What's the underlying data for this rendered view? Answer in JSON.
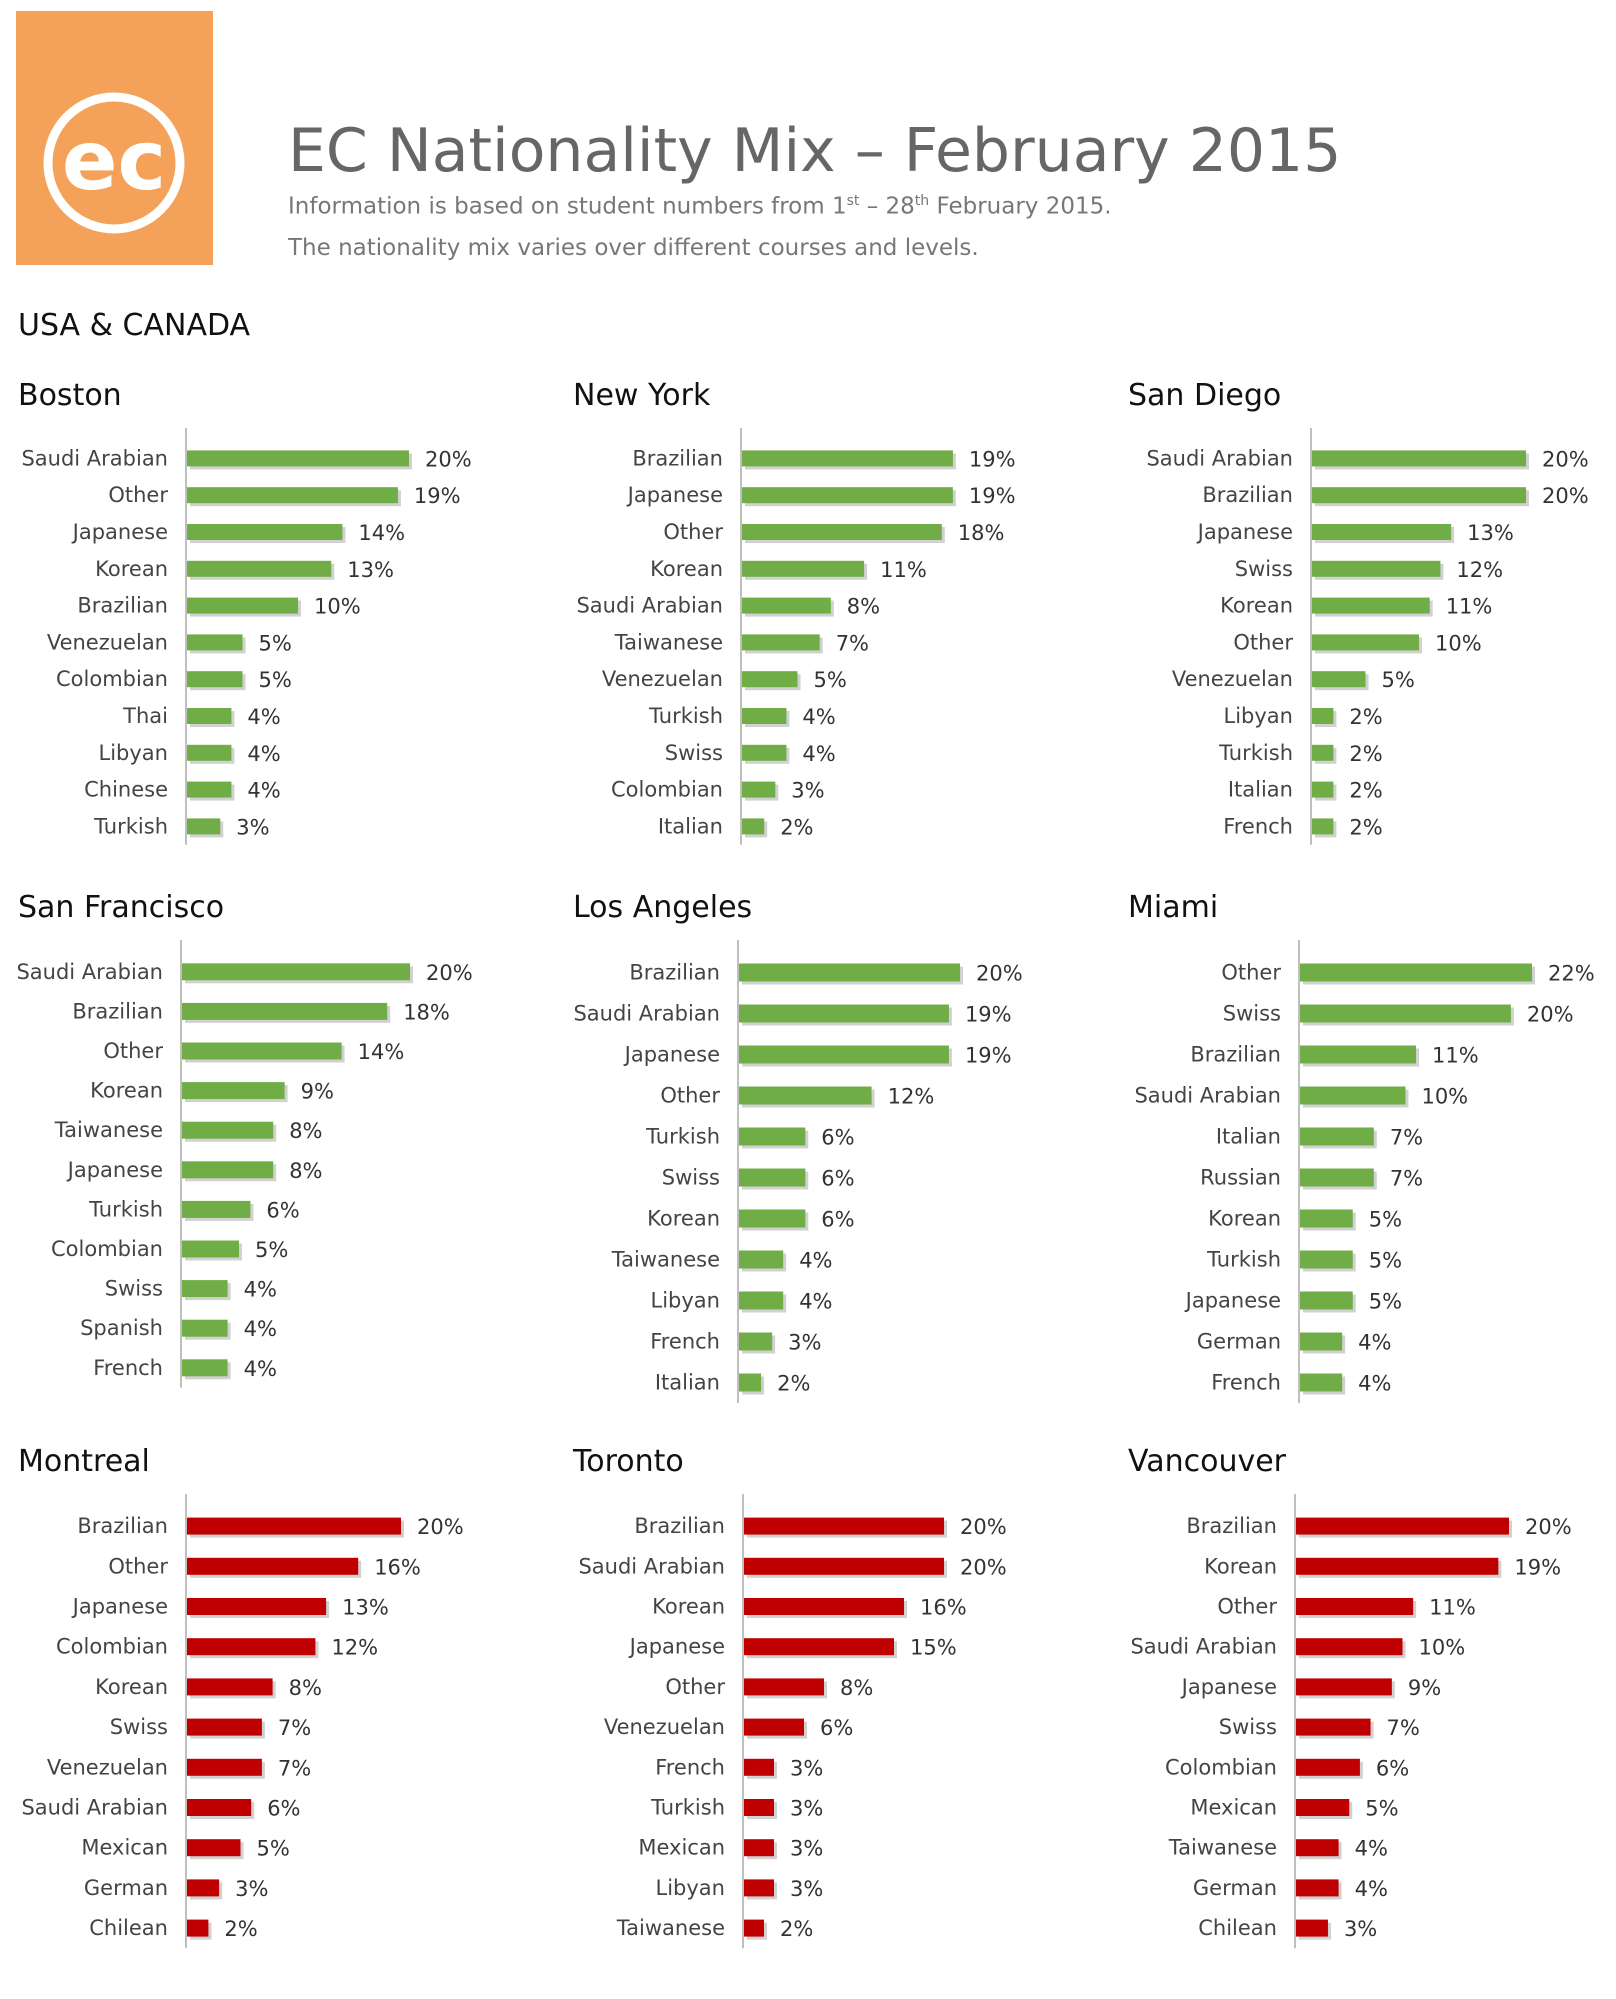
{
  "logo": {
    "text": "ec",
    "background": "#f4a259"
  },
  "header": {
    "title": "EC Nationality Mix – February 2015",
    "subtitle_pre": "Information is based on student numbers from 1",
    "subtitle_sup1": "st",
    "subtitle_mid": " – 28",
    "subtitle_sup2": "th",
    "subtitle_post": " February 2015.",
    "subtitle2": "The nationality mix varies over different courses and levels."
  },
  "region": "USA & CANADA",
  "chart_data": [
    {
      "type": "bar",
      "orientation": "horizontal",
      "title": "Boston",
      "color": "#70ad47",
      "xlim": [
        0,
        20
      ],
      "categories": [
        "Saudi Arabian",
        "Other",
        "Japanese",
        "Korean",
        "Brazilian",
        "Venezuelan",
        "Colombian",
        "Thai",
        "Libyan",
        "Chinese",
        "Turkish"
      ],
      "values": [
        20,
        19,
        14,
        13,
        10,
        5,
        5,
        4,
        4,
        4,
        3
      ],
      "labels": [
        "20%",
        "19%",
        "14%",
        "13%",
        "10%",
        "5%",
        "5%",
        "4%",
        "4%",
        "4%",
        "3%"
      ]
    },
    {
      "type": "bar",
      "orientation": "horizontal",
      "title": "New York",
      "color": "#70ad47",
      "xlim": [
        0,
        20
      ],
      "categories": [
        "Brazilian",
        "Japanese",
        "Other",
        "Korean",
        "Saudi Arabian",
        "Taiwanese",
        "Venezuelan",
        "Turkish",
        "Swiss",
        "Colombian",
        "Italian"
      ],
      "values": [
        19,
        19,
        18,
        11,
        8,
        7,
        5,
        4,
        4,
        3,
        2
      ],
      "labels": [
        "19%",
        "19%",
        "18%",
        "11%",
        "8%",
        "7%",
        "5%",
        "4%",
        "4%",
        "3%",
        "2%"
      ]
    },
    {
      "type": "bar",
      "orientation": "horizontal",
      "title": "San Diego",
      "color": "#70ad47",
      "xlim": [
        0,
        20
      ],
      "categories": [
        "Saudi Arabian",
        "Brazilian",
        "Japanese",
        "Swiss",
        "Korean",
        "Other",
        "Venezuelan",
        "Libyan",
        "Turkish",
        "Italian",
        "French"
      ],
      "values": [
        20,
        20,
        13,
        12,
        11,
        10,
        5,
        2,
        2,
        2,
        2
      ],
      "labels": [
        "20%",
        "20%",
        "13%",
        "12%",
        "11%",
        "10%",
        "5%",
        "2%",
        "2%",
        "2%",
        "2%"
      ]
    },
    {
      "type": "bar",
      "orientation": "horizontal",
      "title": "San Francisco",
      "color": "#70ad47",
      "xlim": [
        0,
        20
      ],
      "categories": [
        "Saudi Arabian",
        "Brazilian",
        "Other",
        "Korean",
        "Taiwanese",
        "Japanese",
        "Turkish",
        "Colombian",
        "Swiss",
        "Spanish",
        "French"
      ],
      "values": [
        20,
        18,
        14,
        9,
        8,
        8,
        6,
        5,
        4,
        4,
        4
      ],
      "labels": [
        "20%",
        "18%",
        "14%",
        "9%",
        "8%",
        "8%",
        "6%",
        "5%",
        "4%",
        "4%",
        "4%"
      ]
    },
    {
      "type": "bar",
      "orientation": "horizontal",
      "title": "Los Angeles",
      "color": "#70ad47",
      "xlim": [
        0,
        20
      ],
      "categories": [
        "Brazilian",
        "Saudi Arabian",
        "Japanese",
        "Other",
        "Turkish",
        "Swiss",
        "Korean",
        "Taiwanese",
        "Libyan",
        "French",
        "Italian"
      ],
      "values": [
        20,
        19,
        19,
        12,
        6,
        6,
        6,
        4,
        4,
        3,
        2
      ],
      "labels": [
        "20%",
        "19%",
        "19%",
        "12%",
        "6%",
        "6%",
        "6%",
        "4%",
        "4%",
        "3%",
        "2%"
      ]
    },
    {
      "type": "bar",
      "orientation": "horizontal",
      "title": "Miami",
      "color": "#70ad47",
      "xlim": [
        0,
        22
      ],
      "categories": [
        "Other",
        "Swiss",
        "Brazilian",
        "Saudi Arabian",
        "Italian",
        "Russian",
        "Korean",
        "Turkish",
        "Japanese",
        "German",
        "French"
      ],
      "values": [
        22,
        20,
        11,
        10,
        7,
        7,
        5,
        5,
        5,
        4,
        4
      ],
      "labels": [
        "22%",
        "20%",
        "11%",
        "10%",
        "7%",
        "7%",
        "5%",
        "5%",
        "5%",
        "4%",
        "4%"
      ]
    },
    {
      "type": "bar",
      "orientation": "horizontal",
      "title": "Montreal",
      "color": "#c00000",
      "xlim": [
        0,
        20
      ],
      "categories": [
        "Brazilian",
        "Other",
        "Japanese",
        "Colombian",
        "Korean",
        "Swiss",
        "Venezuelan",
        "Saudi Arabian",
        "Mexican",
        "German",
        "Chilean"
      ],
      "values": [
        20,
        16,
        13,
        12,
        8,
        7,
        7,
        6,
        5,
        3,
        2
      ],
      "labels": [
        "20%",
        "16%",
        "13%",
        "12%",
        "8%",
        "7%",
        "7%",
        "6%",
        "5%",
        "3%",
        "2%"
      ]
    },
    {
      "type": "bar",
      "orientation": "horizontal",
      "title": "Toronto",
      "color": "#c00000",
      "xlim": [
        0,
        20
      ],
      "categories": [
        "Brazilian",
        "Saudi Arabian",
        "Korean",
        "Japanese",
        "Other",
        "Venezuelan",
        "French",
        "Turkish",
        "Mexican",
        "Libyan",
        "Taiwanese"
      ],
      "values": [
        20,
        20,
        16,
        15,
        8,
        6,
        3,
        3,
        3,
        3,
        2
      ],
      "labels": [
        "20%",
        "20%",
        "16%",
        "15%",
        "8%",
        "6%",
        "3%",
        "3%",
        "3%",
        "3%",
        "2%"
      ]
    },
    {
      "type": "bar",
      "orientation": "horizontal",
      "title": "Vancouver",
      "color": "#c00000",
      "xlim": [
        0,
        20
      ],
      "categories": [
        "Brazilian",
        "Korean",
        "Other",
        "Saudi Arabian",
        "Japanese",
        "Swiss",
        "Colombian",
        "Mexican",
        "Taiwanese",
        "German",
        "Chilean"
      ],
      "values": [
        20,
        19,
        11,
        10,
        9,
        7,
        6,
        5,
        4,
        4,
        3
      ],
      "labels": [
        "20%",
        "19%",
        "11%",
        "10%",
        "9%",
        "7%",
        "6%",
        "5%",
        "4%",
        "4%",
        "3%"
      ]
    }
  ]
}
